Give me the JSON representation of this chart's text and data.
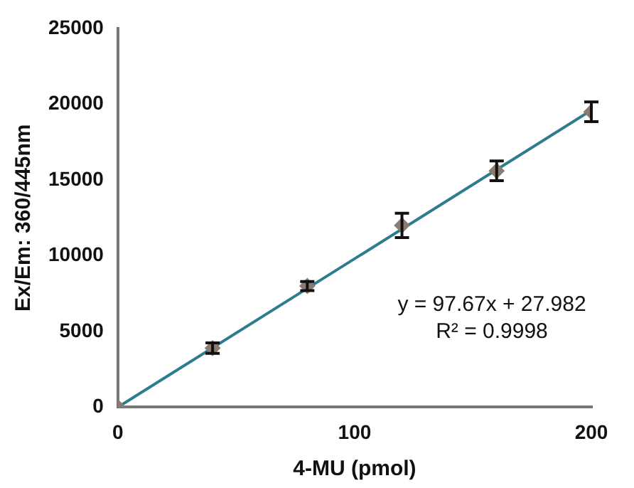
{
  "chart_data": {
    "type": "scatter",
    "xlabel": "4-MU (pmol)",
    "ylabel": "Ex/Em: 360/445nm",
    "xlim": [
      0,
      200
    ],
    "xticks": [
      0,
      100,
      200
    ],
    "ylim": [
      0,
      25000
    ],
    "yticks": [
      0,
      5000,
      10000,
      15000,
      20000,
      25000
    ],
    "grid": false,
    "legend": false,
    "series": [
      {
        "marker": "diamond",
        "color": "#8c7b70",
        "x": [
          0,
          40,
          80,
          120,
          160,
          200
        ],
        "values": [
          0,
          3900,
          8000,
          12000,
          15600,
          19500
        ],
        "errors": [
          null,
          350,
          300,
          800,
          650,
          650
        ]
      },
      {
        "type": "line",
        "color": "#2e7d8f",
        "x": [
          0,
          200
        ],
        "values": [
          0,
          19600
        ],
        "marker": "none"
      }
    ],
    "annotations": [
      "y = 97.67x + 27.982",
      "R² = 0.9998"
    ]
  }
}
